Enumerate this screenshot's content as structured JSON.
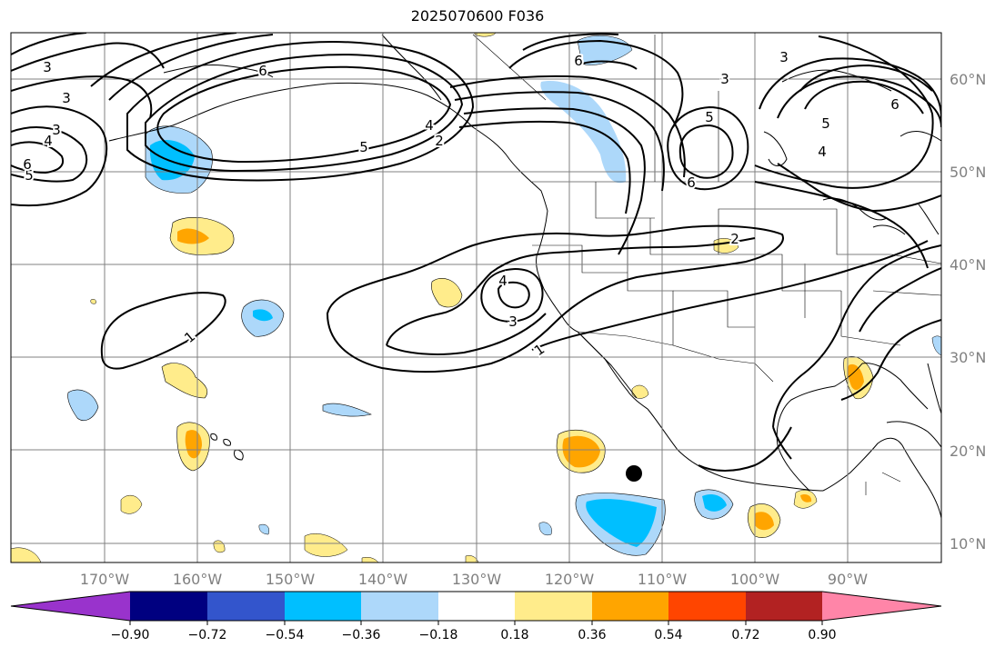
{
  "title": "2025070600 F036",
  "map": {
    "lon_ticks": [
      {
        "label": "170°W",
        "lon": -170
      },
      {
        "label": "160°W",
        "lon": -160
      },
      {
        "label": "150°W",
        "lon": -150
      },
      {
        "label": "140°W",
        "lon": -140
      },
      {
        "label": "130°W",
        "lon": -130
      },
      {
        "label": "120°W",
        "lon": -120
      },
      {
        "label": "110°W",
        "lon": -110
      },
      {
        "label": "100°W",
        "lon": -100
      },
      {
        "label": "90°W",
        "lon": -90
      }
    ],
    "lat_ticks": [
      {
        "label": "10°N",
        "lat": 10
      },
      {
        "label": "20°N",
        "lat": 20
      },
      {
        "label": "30°N",
        "lat": 30
      },
      {
        "label": "40°N",
        "lat": 40
      },
      {
        "label": "50°N",
        "lat": 50
      },
      {
        "label": "60°N",
        "lat": 60
      }
    ],
    "extent": {
      "lon_min": -180,
      "lon_max": -80,
      "lat_min": 8,
      "lat_max": 65
    },
    "storm_center": {
      "lon": -112.6,
      "lat": 17.5
    },
    "contour_labels": [
      "1",
      "2",
      "3",
      "4",
      "5",
      "6"
    ]
  },
  "colorbar": {
    "colors": [
      "#9933cc",
      "#000080",
      "#3355cc",
      "#00bfff",
      "#add8fa",
      "#ffffff",
      "#ffec8b",
      "#ffa500",
      "#ff4500",
      "#b22222",
      "#ff85a8"
    ],
    "labels": [
      "−0.90",
      "−0.72",
      "−0.54",
      "−0.36",
      "−0.18",
      "0.18",
      "0.36",
      "0.54",
      "0.72",
      "0.90"
    ]
  }
}
